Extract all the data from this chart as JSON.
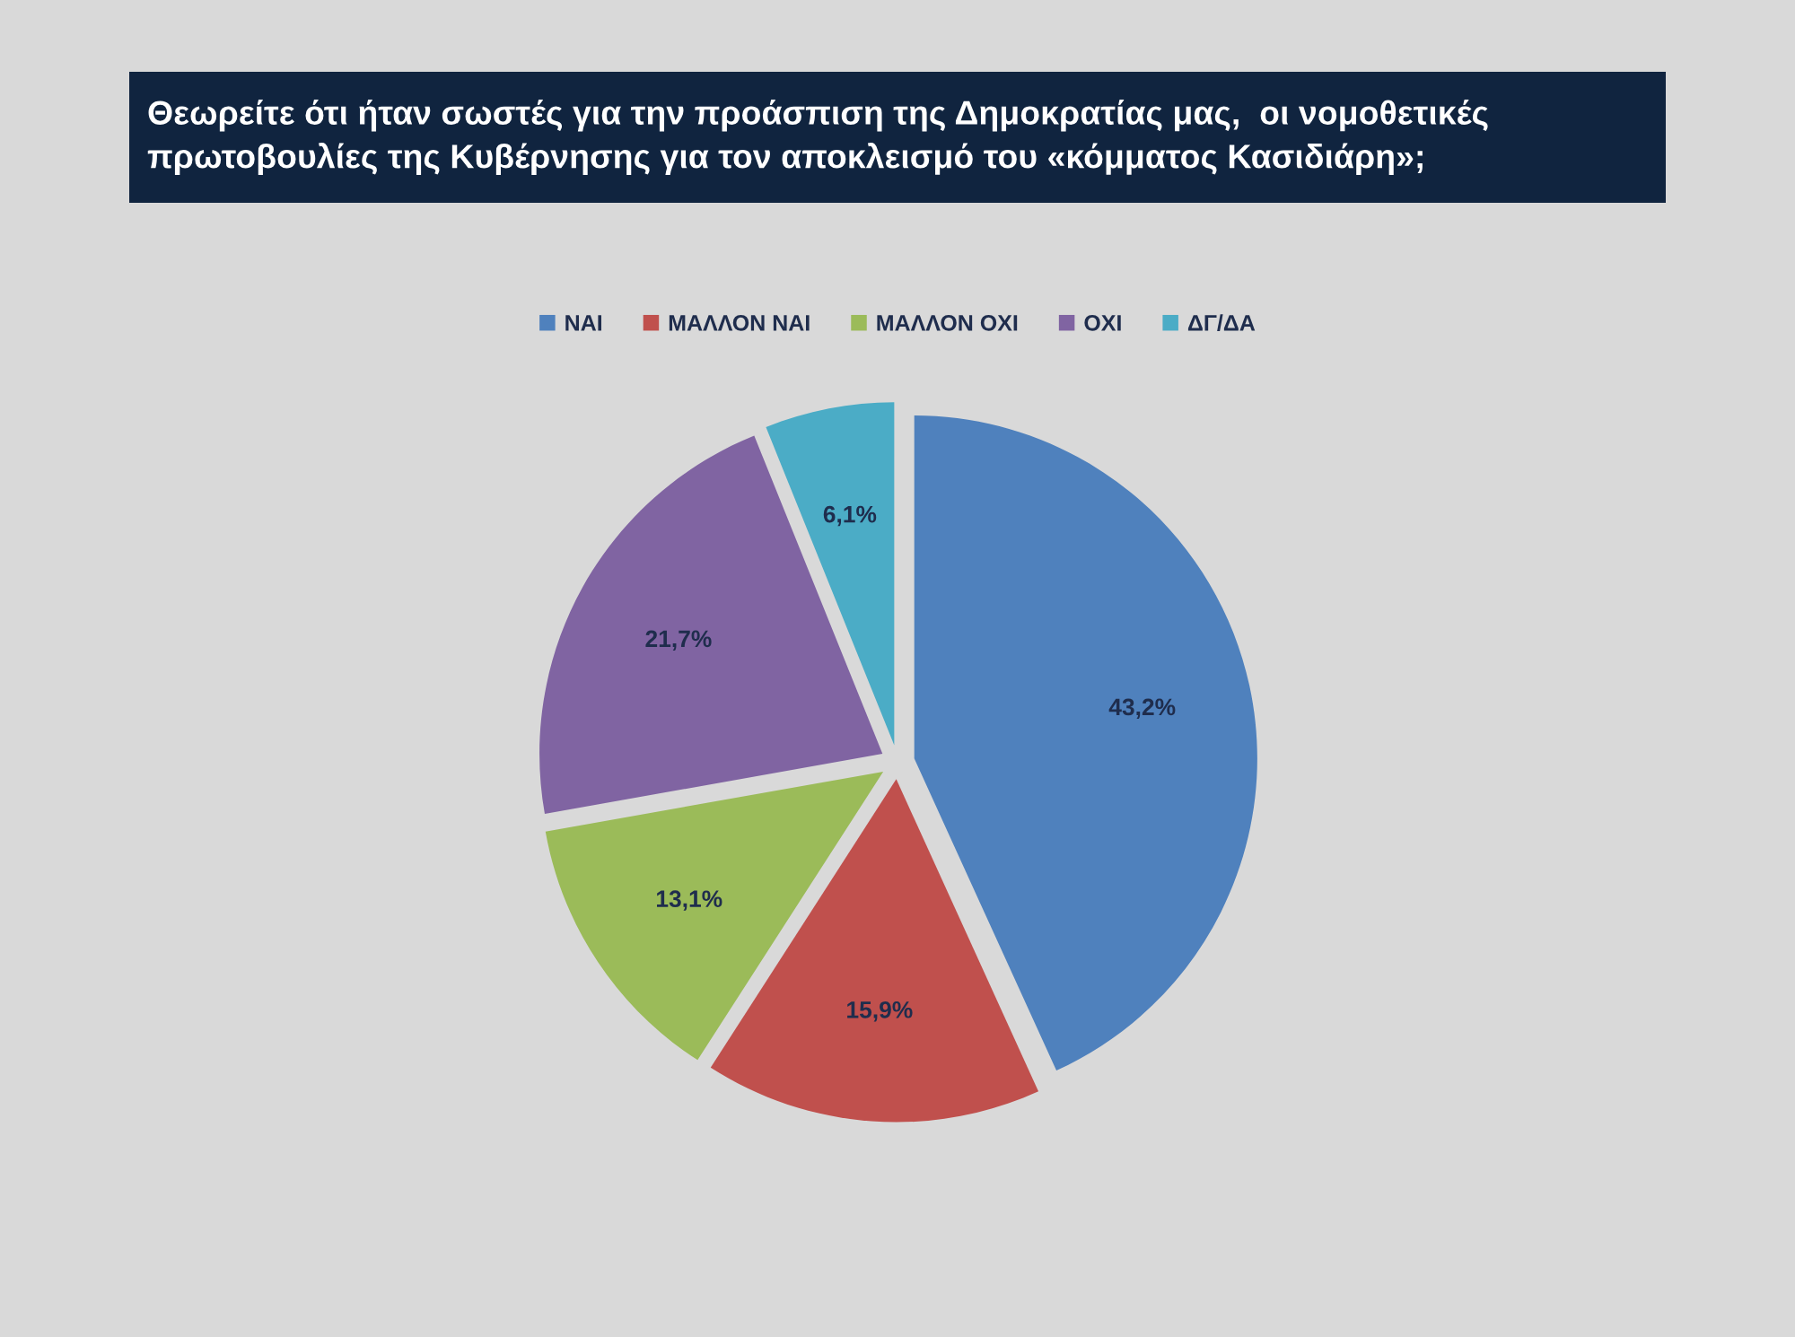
{
  "chart_data": {
    "type": "pie",
    "title": "Θεωρείτε ότι ήταν σωστές για την προάσπιση της Δημοκρατίας μας,  οι νομοθετικές\nπρωτοβουλίες της Κυβέρνησης για τον αποκλεισμό του «κόμματος Κασιδιάρη»;",
    "categories": [
      "ΝΑΙ",
      "ΜΑΛΛΟΝ ΝΑΙ",
      "ΜΑΛΛΟΝ ΟΧΙ",
      "ΟΧΙ",
      "ΔΓ/ΔΑ"
    ],
    "values": [
      43.2,
      15.9,
      13.1,
      21.7,
      6.1
    ],
    "value_labels": [
      "43,2%",
      "15,9%",
      "13,1%",
      "21,7%",
      "6,1%"
    ],
    "colors": [
      "#4f81bd",
      "#c0504d",
      "#9bbb59",
      "#8064a2",
      "#4bacc6"
    ],
    "legend": "top"
  }
}
